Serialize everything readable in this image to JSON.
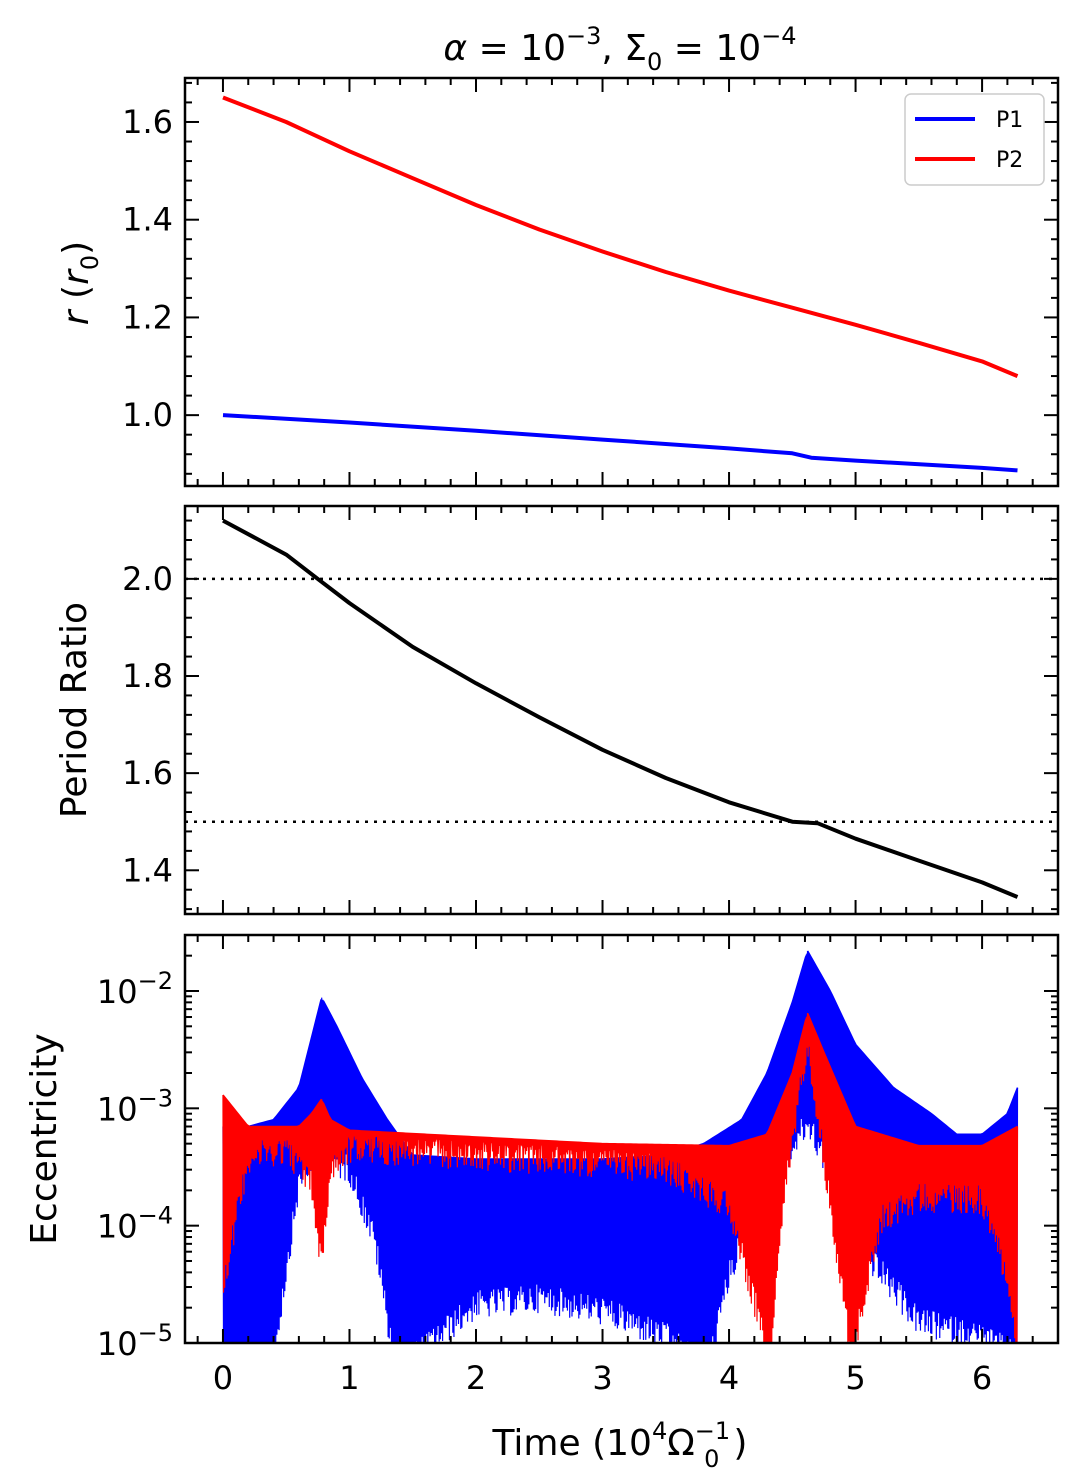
{
  "chart_data": [
    {
      "id": "radius",
      "type": "line",
      "title": "α = 10⁻³, Σ₀ = 10⁻⁴",
      "ylabel": "r (r₀)",
      "xlim": [
        -0.3,
        6.6
      ],
      "ylim": [
        0.855,
        1.69
      ],
      "yticks": [
        1.0,
        1.2,
        1.4,
        1.6
      ],
      "ytick_labels": [
        "1.0",
        "1.2",
        "1.4",
        "1.6"
      ],
      "legend_position": "top-right",
      "series": [
        {
          "name": "P1",
          "color": "#0000ff",
          "x": [
            0,
            1,
            2,
            3,
            4,
            4.5,
            4.65,
            5,
            6,
            6.28
          ],
          "y": [
            1.0,
            0.985,
            0.968,
            0.95,
            0.932,
            0.922,
            0.913,
            0.907,
            0.892,
            0.887
          ]
        },
        {
          "name": "P2",
          "color": "#ff0000",
          "x": [
            0,
            0.5,
            1,
            1.5,
            2,
            2.5,
            3,
            3.5,
            4,
            4.5,
            5,
            5.5,
            6,
            6.28
          ],
          "y": [
            1.65,
            1.6,
            1.54,
            1.485,
            1.43,
            1.38,
            1.335,
            1.293,
            1.255,
            1.22,
            1.185,
            1.148,
            1.11,
            1.08
          ]
        }
      ]
    },
    {
      "id": "period_ratio",
      "type": "line",
      "ylabel": "Period Ratio",
      "xlim": [
        -0.3,
        6.6
      ],
      "ylim": [
        1.31,
        2.15
      ],
      "yticks": [
        1.4,
        1.6,
        1.8,
        2.0
      ],
      "ytick_labels": [
        "1.4",
        "1.6",
        "1.8",
        "2.0"
      ],
      "reference_lines": [
        2.0,
        1.5
      ],
      "series": [
        {
          "color": "#000000",
          "x": [
            0,
            0.5,
            0.75,
            1,
            1.5,
            2,
            2.5,
            3,
            3.5,
            4,
            4.5,
            4.7,
            5,
            5.5,
            6,
            6.28
          ],
          "y": [
            2.12,
            2.05,
            2.0,
            1.95,
            1.86,
            1.785,
            1.715,
            1.648,
            1.59,
            1.54,
            1.5,
            1.497,
            1.465,
            1.42,
            1.375,
            1.345
          ]
        }
      ]
    },
    {
      "id": "eccentricity",
      "type": "line",
      "ylabel": "Eccentricity",
      "xlabel": "Time (10⁴ Ω₀⁻¹)",
      "yscale": "log",
      "xlim": [
        -0.3,
        6.6
      ],
      "ylim": [
        1e-05,
        0.03
      ],
      "yticks": [
        1e-05,
        0.0001,
        0.001,
        0.01
      ],
      "ytick_labels": [
        "10−5",
        "10−4",
        "10−3",
        "10−2"
      ],
      "xticks": [
        0,
        1,
        2,
        3,
        4,
        5,
        6
      ],
      "xtick_labels": [
        "0",
        "1",
        "2",
        "3",
        "4",
        "5",
        "6"
      ],
      "series": [
        {
          "name": "P1",
          "color": "#0000ff",
          "upper_envelope": {
            "x": [
              0,
              0.2,
              0.4,
              0.6,
              0.7,
              0.78,
              0.9,
              1.1,
              1.3,
              1.5,
              2,
              3,
              3.5,
              3.8,
              4.1,
              4.3,
              4.5,
              4.62,
              4.8,
              5.0,
              5.3,
              5.6,
              5.8,
              6.0,
              6.2,
              6.28
            ],
            "y": [
              0.0007,
              0.0007,
              0.0008,
              0.0015,
              0.004,
              0.0088,
              0.005,
              0.0018,
              0.0008,
              0.0004,
              0.00037,
              0.00037,
              0.0004,
              0.0005,
              0.0008,
              0.002,
              0.008,
              0.022,
              0.01,
              0.0035,
              0.0015,
              0.0009,
              0.0006,
              0.0006,
              0.0009,
              0.0015
            ]
          },
          "lower_envelope": {
            "x": [
              0,
              0.2,
              0.4,
              0.6,
              0.7,
              0.8,
              1.0,
              1.2,
              1.35,
              1.5,
              2,
              2.5,
              3,
              3.5,
              3.7,
              3.85,
              4.0,
              4.2,
              4.5,
              4.62,
              4.8,
              5.0,
              5.5,
              6.0,
              6.28
            ],
            "y": [
              1e-05,
              1e-05,
              1e-05,
              0.0003,
              0.0005,
              0.0005,
              0.0004,
              0.0001,
              1e-05,
              1e-05,
              2.8e-05,
              3.2e-05,
              2.5e-05,
              1.5e-05,
              1e-05,
              1e-05,
              5e-05,
              0.0002,
              0.0006,
              0.001,
              0.0004,
              0.0001,
              2e-05,
              1.5e-05,
              1e-05
            ]
          }
        },
        {
          "name": "P2",
          "color": "#ff0000",
          "upper_envelope": {
            "x": [
              0,
              0.2,
              0.6,
              0.7,
              0.78,
              0.85,
              1.0,
              2,
              3,
              3.5,
              4.0,
              4.3,
              4.5,
              4.62,
              4.75,
              5.0,
              5.5,
              6.0,
              6.28
            ],
            "y": [
              0.0013,
              0.0007,
              0.0007,
              0.0009,
              0.0012,
              0.0008,
              0.00065,
              0.00057,
              0.0005,
              0.00049,
              0.00048,
              0.0006,
              0.002,
              0.0065,
              0.003,
              0.0007,
              0.00048,
              0.00048,
              0.0007
            ]
          },
          "lower_envelope": {
            "x": [
              0,
              0.2,
              0.5,
              0.7,
              0.78,
              0.85,
              1.0,
              2,
              3,
              3.5,
              4.0,
              4.2,
              4.32,
              4.45,
              4.62,
              4.8,
              4.97,
              5.2,
              5.5,
              6.0,
              6.2,
              6.28
            ],
            "y": [
              4e-05,
              0.0005,
              0.0006,
              0.0003,
              6e-05,
              0.0004,
              0.0006,
              0.00052,
              0.00045,
              0.0004,
              0.0002,
              3e-05,
              1e-05,
              0.0003,
              0.005,
              0.0002,
              1e-05,
              0.00015,
              0.00023,
              0.00022,
              5e-05,
              1e-05
            ]
          }
        }
      ]
    }
  ]
}
